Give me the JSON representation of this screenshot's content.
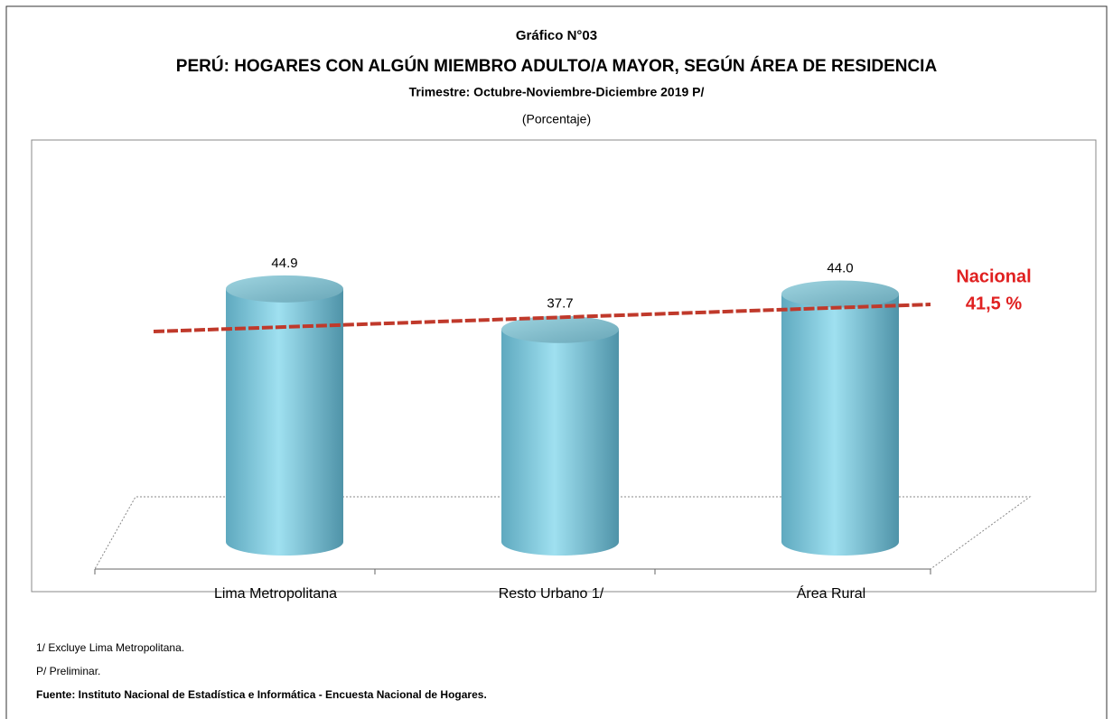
{
  "chart_data": {
    "type": "bar",
    "kicker": "Gráfico N°03",
    "title": "PERÚ: HOGARES CON ALGÚN MIEMBRO ADULTO/A MAYOR, SEGÚN ÁREA DE RESIDENCIA",
    "subtitle": "Trimestre: Octubre-Noviembre-Diciembre 2019 P/",
    "unit": "(Porcentaje)",
    "categories": [
      "Lima Metropolitana",
      "Resto Urbano 1/",
      "Área Rural"
    ],
    "values": [
      44.9,
      37.7,
      44.0
    ],
    "value_labels": [
      "44.9",
      "37.7",
      "44.0"
    ],
    "color": "#7ec8dc",
    "ylim": [
      0,
      50
    ],
    "reference": {
      "name": "Nacional",
      "value": 41.5,
      "label": "41,5 %",
      "color": "#c0392b"
    },
    "notes": [
      "1/ Excluye Lima Metropolitana.",
      "P/ Preliminar.",
      "Fuente: Instituto Nacional de Estadística e Informática - Encuesta Nacional de Hogares."
    ]
  }
}
